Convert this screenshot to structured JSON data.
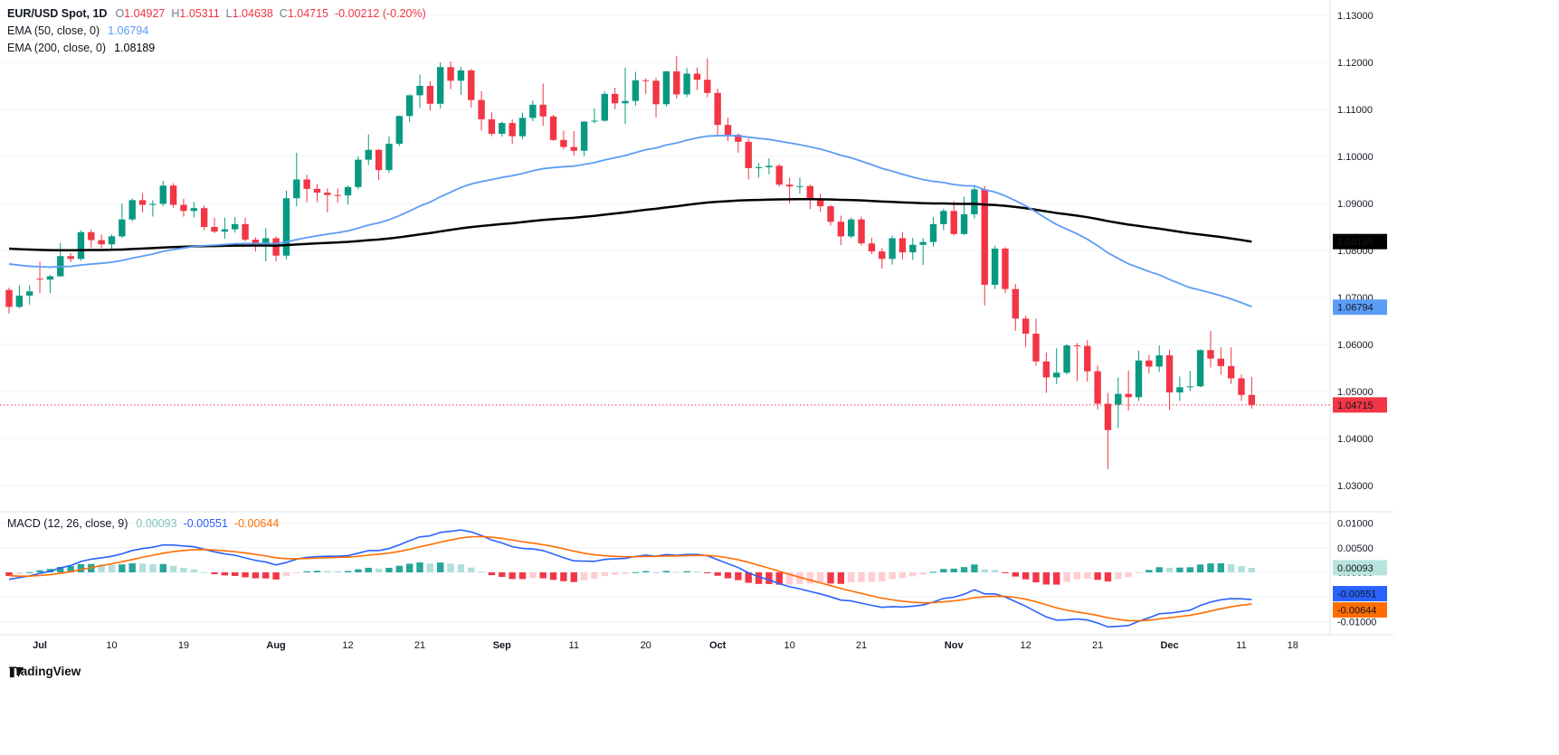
{
  "header": {
    "symbol": "EUR/USD Spot, 1D",
    "ohlc": {
      "o_label": "O",
      "o_value": "1.04927",
      "h_label": "H",
      "h_value": "1.05311",
      "l_label": "L",
      "l_value": "1.04638",
      "c_label": "C",
      "c_value": "1.04715",
      "change": "-0.00212 (-0.20%)"
    },
    "ema50_label": "EMA (50, close, 0)",
    "ema50_value": "1.06794",
    "ema200_label": "EMA (200, close, 0)",
    "ema200_value": "1.08189"
  },
  "macd_header": {
    "label": "MACD (12, 26, close, 9)",
    "hist_value": "0.00093",
    "macd_value": "-0.00551",
    "signal_value": "-0.00644"
  },
  "price_axis": {
    "ticks": [
      "1.13000",
      "1.12000",
      "1.11000",
      "1.10000",
      "1.09000",
      "1.08000",
      "1.07000",
      "1.06000",
      "1.05000",
      "1.04000",
      "1.03000"
    ]
  },
  "macd_axis": {
    "ticks": [
      "0.01000",
      "0.00500",
      "0.00000",
      "-0.00500",
      "-0.01000"
    ]
  },
  "time_axis": {
    "ticks": [
      {
        "label": "Jul",
        "index": 3,
        "major": true
      },
      {
        "label": "10",
        "index": 10,
        "major": false
      },
      {
        "label": "19",
        "index": 17,
        "major": false
      },
      {
        "label": "Aug",
        "index": 26,
        "major": true
      },
      {
        "label": "12",
        "index": 33,
        "major": false
      },
      {
        "label": "21",
        "index": 40,
        "major": false
      },
      {
        "label": "Sep",
        "index": 48,
        "major": true
      },
      {
        "label": "11",
        "index": 55,
        "major": false
      },
      {
        "label": "20",
        "index": 62,
        "major": false
      },
      {
        "label": "Oct",
        "index": 69,
        "major": true
      },
      {
        "label": "10",
        "index": 76,
        "major": false
      },
      {
        "label": "21",
        "index": 83,
        "major": false
      },
      {
        "label": "Nov",
        "index": 92,
        "major": true
      },
      {
        "label": "12",
        "index": 99,
        "major": false
      },
      {
        "label": "21",
        "index": 106,
        "major": false
      },
      {
        "label": "Dec",
        "index": 113,
        "major": true
      },
      {
        "label": "11",
        "index": 120,
        "major": false
      },
      {
        "label": "18",
        "index": 125,
        "major": false
      }
    ]
  },
  "price_labels": [
    {
      "name": "ema200-price-label",
      "text": "1.08189",
      "value": 1.08189,
      "bg": "#000000",
      "fg": "#ffffff"
    },
    {
      "name": "ema50-price-label",
      "text": "1.06794",
      "value": 1.06794,
      "bg": "#5b9cf6",
      "fg": "#ffffff"
    },
    {
      "name": "last-price-label",
      "text": "1.04715",
      "value": 1.04715,
      "bg": "#f23645",
      "fg": "#ffffff"
    }
  ],
  "macd_labels": [
    {
      "name": "macd-hist-label",
      "text": "0.00093",
      "value": 0.00093,
      "bg": "#b7e4dc",
      "fg": "#131722"
    },
    {
      "name": "macd-line-label",
      "text": "-0.00551",
      "value": -0.00551,
      "bg": "#2962ff",
      "fg": "#ffffff"
    },
    {
      "name": "macd-signal-label",
      "text": "-0.00644",
      "value": -0.00644,
      "bg": "#ff6d00",
      "fg": "#ffffff"
    }
  ],
  "colors": {
    "up": "#089981",
    "down": "#f23645",
    "ema50": "#5b9cf6",
    "ema200": "#000000",
    "macd": "#2962ff",
    "signal": "#ff6d00",
    "hist_grow_above": "#26a69a",
    "hist_fall_above": "#b2dfdb",
    "hist_grow_below": "#ffcdd2",
    "hist_fall_below": "#f23645",
    "hist_value_text": "#78c5b8",
    "grid": "#f0f3f8",
    "divider": "#e0e3eb",
    "axis_text": "#131722"
  },
  "logo_text": "TradingView",
  "chart_data": {
    "type": "candlestick",
    "title": "EUR/USD Spot, 1D",
    "timeframe": "1D",
    "price_range": [
      1.03,
      1.13
    ],
    "last_price": 1.04715,
    "grid": true,
    "legend_position": "top-left",
    "columns": [
      "date",
      "open",
      "high",
      "low",
      "close"
    ],
    "candles": [
      [
        "2024-06-26",
        1.0716,
        1.0721,
        1.0666,
        1.068
      ],
      [
        "2024-06-27",
        1.068,
        1.0726,
        1.0677,
        1.0704
      ],
      [
        "2024-06-28",
        1.0704,
        1.0726,
        1.0685,
        1.0713
      ],
      [
        "2024-07-01",
        1.074,
        1.0776,
        1.0709,
        1.0738
      ],
      [
        "2024-07-02",
        1.0738,
        1.0748,
        1.0709,
        1.0745
      ],
      [
        "2024-07-03",
        1.0745,
        1.0816,
        1.0744,
        1.0788
      ],
      [
        "2024-07-04",
        1.0788,
        1.0795,
        1.0775,
        1.0782
      ],
      [
        "2024-07-05",
        1.0782,
        1.0843,
        1.0778,
        1.0839
      ],
      [
        "2024-07-08",
        1.0839,
        1.0845,
        1.0805,
        1.0822
      ],
      [
        "2024-07-09",
        1.0822,
        1.0834,
        1.0805,
        1.0813
      ],
      [
        "2024-07-10",
        1.0813,
        1.0834,
        1.0799,
        1.083
      ],
      [
        "2024-07-11",
        1.083,
        1.09,
        1.0827,
        1.0866
      ],
      [
        "2024-07-12",
        1.0866,
        1.0911,
        1.0862,
        1.0907
      ],
      [
        "2024-07-15",
        1.0907,
        1.0922,
        1.0881,
        1.0897
      ],
      [
        "2024-07-16",
        1.0897,
        1.0907,
        1.0872,
        1.0899
      ],
      [
        "2024-07-17",
        1.0899,
        1.0948,
        1.0894,
        1.0938
      ],
      [
        "2024-07-18",
        1.0938,
        1.0943,
        1.0891,
        1.0897
      ],
      [
        "2024-07-19",
        1.0897,
        1.091,
        1.0872,
        1.0884
      ],
      [
        "2024-07-22",
        1.0884,
        1.0903,
        1.087,
        1.089
      ],
      [
        "2024-07-23",
        1.089,
        1.0896,
        1.0843,
        1.085
      ],
      [
        "2024-07-24",
        1.085,
        1.087,
        1.0837,
        1.084
      ],
      [
        "2024-07-25",
        1.084,
        1.087,
        1.0825,
        1.0845
      ],
      [
        "2024-07-26",
        1.0845,
        1.0871,
        1.0838,
        1.0856
      ],
      [
        "2024-07-29",
        1.0856,
        1.087,
        1.0819,
        1.0823
      ],
      [
        "2024-07-30",
        1.0823,
        1.0828,
        1.0798,
        1.0816
      ],
      [
        "2024-07-31",
        1.0816,
        1.0848,
        1.0777,
        1.0826
      ],
      [
        "2024-08-01",
        1.0826,
        1.083,
        1.0777,
        1.0789
      ],
      [
        "2024-08-02",
        1.0789,
        1.0927,
        1.0781,
        1.0911
      ],
      [
        "2024-08-05",
        1.0911,
        1.1008,
        1.0894,
        1.0951
      ],
      [
        "2024-08-06",
        1.0951,
        1.0961,
        1.0903,
        1.0931
      ],
      [
        "2024-08-07",
        1.0931,
        1.0941,
        1.0903,
        1.0923
      ],
      [
        "2024-08-08",
        1.0923,
        1.0932,
        1.0881,
        1.0918
      ],
      [
        "2024-08-09",
        1.0918,
        1.0932,
        1.0902,
        1.0917
      ],
      [
        "2024-08-12",
        1.0917,
        1.0938,
        1.0898,
        1.0935
      ],
      [
        "2024-08-13",
        1.0935,
        1.1,
        1.093,
        1.0993
      ],
      [
        "2024-08-14",
        1.0993,
        1.1047,
        1.0982,
        1.1014
      ],
      [
        "2024-08-15",
        1.1014,
        1.1016,
        1.095,
        1.0971
      ],
      [
        "2024-08-16",
        1.0971,
        1.1043,
        1.0965,
        1.1027
      ],
      [
        "2024-08-19",
        1.1027,
        1.1087,
        1.1022,
        1.1086
      ],
      [
        "2024-08-20",
        1.1086,
        1.1132,
        1.1073,
        1.113
      ],
      [
        "2024-08-21",
        1.113,
        1.1174,
        1.1103,
        1.115
      ],
      [
        "2024-08-22",
        1.115,
        1.116,
        1.1098,
        1.1112
      ],
      [
        "2024-08-23",
        1.1112,
        1.12,
        1.1102,
        1.119
      ],
      [
        "2024-08-26",
        1.119,
        1.1202,
        1.1143,
        1.1161
      ],
      [
        "2024-08-27",
        1.1161,
        1.119,
        1.1131,
        1.1183
      ],
      [
        "2024-08-28",
        1.1183,
        1.1186,
        1.1104,
        1.112
      ],
      [
        "2024-08-29",
        1.112,
        1.1139,
        1.1055,
        1.1079
      ],
      [
        "2024-08-30",
        1.1079,
        1.1094,
        1.1043,
        1.1048
      ],
      [
        "2024-09-02",
        1.1048,
        1.1074,
        1.1042,
        1.1071
      ],
      [
        "2024-09-03",
        1.1071,
        1.1079,
        1.1026,
        1.1043
      ],
      [
        "2024-09-04",
        1.1043,
        1.1093,
        1.1037,
        1.1082
      ],
      [
        "2024-09-05",
        1.1082,
        1.1119,
        1.1075,
        1.111
      ],
      [
        "2024-09-06",
        1.111,
        1.1155,
        1.1065,
        1.1085
      ],
      [
        "2024-09-09",
        1.1085,
        1.1089,
        1.1033,
        1.1035
      ],
      [
        "2024-09-10",
        1.1035,
        1.1055,
        1.1015,
        1.102
      ],
      [
        "2024-09-11",
        1.102,
        1.1054,
        1.1002,
        1.1012
      ],
      [
        "2024-09-12",
        1.1012,
        1.1075,
        1.1001,
        1.1074
      ],
      [
        "2024-09-13",
        1.1074,
        1.1102,
        1.1071,
        1.1076
      ],
      [
        "2024-09-16",
        1.1076,
        1.1138,
        1.1074,
        1.1133
      ],
      [
        "2024-09-17",
        1.1133,
        1.1146,
        1.1101,
        1.1113
      ],
      [
        "2024-09-18",
        1.1113,
        1.1189,
        1.1069,
        1.1118
      ],
      [
        "2024-09-19",
        1.1118,
        1.118,
        1.1108,
        1.1162
      ],
      [
        "2024-09-20",
        1.1162,
        1.1166,
        1.1133,
        1.1161
      ],
      [
        "2024-09-23",
        1.1161,
        1.1167,
        1.1083,
        1.1111
      ],
      [
        "2024-09-24",
        1.1111,
        1.1182,
        1.1106,
        1.1181
      ],
      [
        "2024-09-25",
        1.1181,
        1.1214,
        1.1123,
        1.1132
      ],
      [
        "2024-09-26",
        1.1132,
        1.1188,
        1.1126,
        1.1176
      ],
      [
        "2024-09-27",
        1.1176,
        1.1189,
        1.1141,
        1.1163
      ],
      [
        "2024-09-30",
        1.1163,
        1.1209,
        1.1126,
        1.1135
      ],
      [
        "2024-10-01",
        1.1135,
        1.1144,
        1.1046,
        1.1067
      ],
      [
        "2024-10-02",
        1.1067,
        1.1082,
        1.1033,
        1.1046
      ],
      [
        "2024-10-03",
        1.1046,
        1.1049,
        1.1008,
        1.1031
      ],
      [
        "2024-10-04",
        1.1031,
        1.1038,
        1.0951,
        1.0975
      ],
      [
        "2024-10-07",
        1.0975,
        1.0986,
        1.0955,
        1.0977
      ],
      [
        "2024-10-08",
        1.0977,
        1.0996,
        1.0962,
        1.098
      ],
      [
        "2024-10-09",
        1.098,
        1.0984,
        1.0936,
        1.094
      ],
      [
        "2024-10-10",
        1.094,
        1.0955,
        1.09,
        1.0936
      ],
      [
        "2024-10-11",
        1.0936,
        1.0955,
        1.0921,
        1.0937
      ],
      [
        "2024-10-14",
        1.0937,
        1.094,
        1.0888,
        1.091
      ],
      [
        "2024-10-15",
        1.091,
        1.0921,
        1.0882,
        1.0894
      ],
      [
        "2024-10-16",
        1.0894,
        1.0897,
        1.0853,
        1.0861
      ],
      [
        "2024-10-17",
        1.0861,
        1.0874,
        1.0811,
        1.083
      ],
      [
        "2024-10-18",
        1.083,
        1.087,
        1.0826,
        1.0866
      ],
      [
        "2024-10-21",
        1.0866,
        1.0872,
        1.0811,
        1.0815
      ],
      [
        "2024-10-22",
        1.0815,
        1.0827,
        1.0792,
        1.0798
      ],
      [
        "2024-10-23",
        1.0798,
        1.0805,
        1.0761,
        1.0782
      ],
      [
        "2024-10-24",
        1.0782,
        1.0832,
        1.077,
        1.0826
      ],
      [
        "2024-10-25",
        1.0826,
        1.0839,
        1.0781,
        1.0796
      ],
      [
        "2024-10-28",
        1.0796,
        1.0827,
        1.078,
        1.0812
      ],
      [
        "2024-10-29",
        1.0812,
        1.0826,
        1.0769,
        1.0818
      ],
      [
        "2024-10-30",
        1.0818,
        1.0871,
        1.0808,
        1.0856
      ],
      [
        "2024-10-31",
        1.0856,
        1.0889,
        1.0843,
        1.0884
      ],
      [
        "2024-11-01",
        1.0884,
        1.0905,
        1.0832,
        1.0835
      ],
      [
        "2024-11-04",
        1.0835,
        1.0914,
        1.0833,
        1.0877
      ],
      [
        "2024-11-05",
        1.0877,
        1.0937,
        1.0868,
        1.093
      ],
      [
        "2024-11-06",
        1.093,
        1.0937,
        1.0683,
        1.0727
      ],
      [
        "2024-11-07",
        1.0727,
        1.081,
        1.0718,
        1.0804
      ],
      [
        "2024-11-08",
        1.0804,
        1.0807,
        1.0709,
        1.0718
      ],
      [
        "2024-11-11",
        1.0718,
        1.0729,
        1.0629,
        1.0655
      ],
      [
        "2024-11-12",
        1.0655,
        1.0662,
        1.0595,
        1.0623
      ],
      [
        "2024-11-13",
        1.0623,
        1.0655,
        1.0555,
        1.0564
      ],
      [
        "2024-11-14",
        1.0564,
        1.0583,
        1.0497,
        1.053
      ],
      [
        "2024-11-15",
        1.053,
        1.0592,
        1.0516,
        1.054
      ],
      [
        "2024-11-18",
        1.054,
        1.0601,
        1.0536,
        1.0598
      ],
      [
        "2024-11-19",
        1.0598,
        1.0603,
        1.0522,
        1.0597
      ],
      [
        "2024-11-20",
        1.0597,
        1.0609,
        1.0521,
        1.0543
      ],
      [
        "2024-11-21",
        1.0543,
        1.0555,
        1.0462,
        1.0474
      ],
      [
        "2024-11-22",
        1.0474,
        1.0497,
        1.0335,
        1.0418
      ],
      [
        "2024-11-25",
        1.0472,
        1.053,
        1.0422,
        1.0495
      ],
      [
        "2024-11-26",
        1.0495,
        1.0545,
        1.046,
        1.0488
      ],
      [
        "2024-11-27",
        1.0488,
        1.0587,
        1.048,
        1.0566
      ],
      [
        "2024-11-28",
        1.0566,
        1.0578,
        1.0538,
        1.0553
      ],
      [
        "2024-11-29",
        1.0553,
        1.0598,
        1.0542,
        1.0577
      ],
      [
        "2024-12-02",
        1.0577,
        1.0589,
        1.0461,
        1.0498
      ],
      [
        "2024-12-03",
        1.0498,
        1.0532,
        1.048,
        1.0509
      ],
      [
        "2024-12-04",
        1.0509,
        1.0544,
        1.0501,
        1.0511
      ],
      [
        "2024-12-05",
        1.0511,
        1.059,
        1.0509,
        1.0588
      ],
      [
        "2024-12-06",
        1.0588,
        1.0629,
        1.0551,
        1.057
      ],
      [
        "2024-12-09",
        1.057,
        1.0594,
        1.0536,
        1.0554
      ],
      [
        "2024-12-10",
        1.0554,
        1.0594,
        1.0516,
        1.0528
      ],
      [
        "2024-12-11",
        1.0528,
        1.0536,
        1.048,
        1.04927
      ],
      [
        "2024-12-12",
        1.04927,
        1.05311,
        1.04638,
        1.04715
      ]
    ],
    "indicators": {
      "ema50": {
        "label": "EMA (50, close, 0)",
        "period": 50,
        "current": 1.06794,
        "seed": 1.0775
      },
      "ema200": {
        "label": "EMA (200, close, 0)",
        "period": 200,
        "current": 1.08189,
        "seed": 1.0805
      },
      "macd": {
        "label": "MACD (12, 26, close, 9)",
        "fast": 12,
        "slow": 26,
        "signal_period": 9,
        "current_macd": -0.00551,
        "current_signal": -0.00644,
        "current_hist": 0.00093,
        "range": [
          -0.01,
          0.01
        ],
        "fast_seed_offset": -0.0008,
        "slow_seed_offset": 0.0008,
        "signal_seed": -0.0005
      }
    }
  }
}
